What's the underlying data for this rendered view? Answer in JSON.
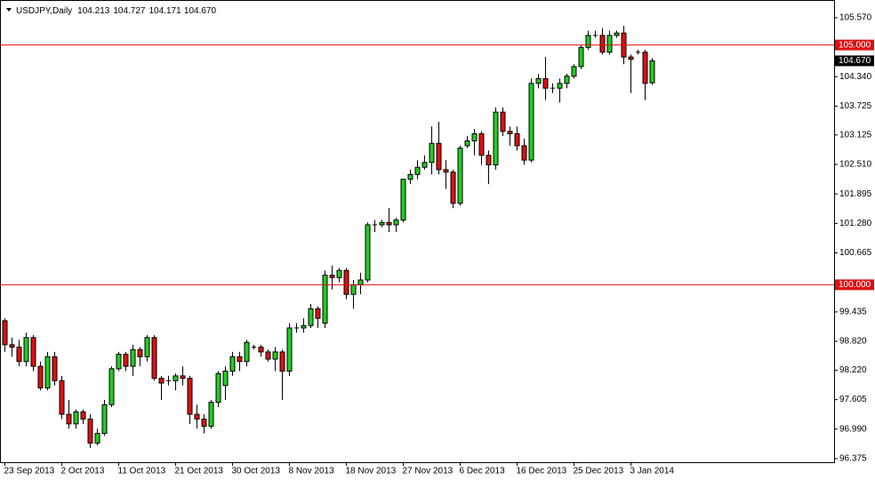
{
  "chart_data": {
    "type": "candlestick",
    "header": {
      "symbol": "USDJPY,Daily",
      "ohlc": [
        "104.213",
        "104.727",
        "104.171",
        "104.670"
      ]
    },
    "x": [
      "23 Sep 2013",
      null,
      null,
      null,
      null,
      null,
      null,
      null,
      "2 Oct 2013",
      null,
      null,
      null,
      null,
      null,
      null,
      null,
      "11 Oct 2013",
      null,
      null,
      null,
      null,
      null,
      null,
      null,
      "21 Oct 2013",
      null,
      null,
      null,
      null,
      null,
      null,
      null,
      "30 Oct 2013",
      null,
      null,
      null,
      null,
      null,
      null,
      null,
      "8 Nov 2013",
      null,
      null,
      null,
      null,
      null,
      null,
      null,
      "18 Nov 2013",
      null,
      null,
      null,
      null,
      null,
      null,
      null,
      "27 Nov 2013",
      null,
      null,
      null,
      null,
      null,
      null,
      null,
      "6 Dec 2013",
      null,
      null,
      null,
      null,
      null,
      null,
      null,
      "16 Dec 2013",
      null,
      null,
      null,
      null,
      null,
      null,
      null,
      "25 Dec 2013",
      null,
      null,
      null,
      null,
      null,
      null,
      null,
      "3 Jan 2014",
      null,
      null,
      null
    ],
    "open": [
      99.25,
      98.75,
      98.7,
      98.4,
      98.9,
      98.3,
      97.85,
      98.5,
      98.0,
      97.3,
      97.1,
      97.35,
      97.2,
      96.7,
      96.9,
      97.5,
      98.25,
      98.55,
      98.3,
      98.65,
      98.5,
      98.9,
      98.05,
      98.0,
      98.0,
      98.1,
      98.05,
      97.3,
      97.2,
      97.05,
      97.55,
      97.9,
      98.2,
      98.5,
      98.4,
      98.7,
      98.7,
      98.6,
      98.45,
      98.6,
      98.2,
      99.1,
      99.1,
      99.15,
      99.5,
      99.2,
      100.2,
      100.15,
      100.3,
      99.8,
      100.0,
      100.1,
      101.25,
      101.25,
      101.3,
      101.25,
      101.35,
      102.2,
      102.3,
      102.45,
      102.55,
      102.95,
      102.4,
      102.35,
      101.7,
      102.9,
      103.0,
      103.15,
      102.7,
      102.5,
      103.6,
      103.2,
      103.15,
      102.9,
      102.6,
      104.2,
      104.3,
      104.1,
      104.1,
      104.2,
      104.35,
      104.55,
      104.95,
      105.2,
      105.2,
      104.85,
      105.2,
      105.25,
      104.75,
      104.85,
      104.85,
      104.213
    ],
    "high": [
      99.3,
      98.9,
      98.85,
      99.0,
      98.95,
      98.4,
      98.6,
      98.6,
      98.1,
      97.6,
      97.4,
      97.4,
      97.3,
      97.0,
      97.6,
      98.3,
      98.6,
      98.6,
      98.75,
      98.7,
      98.95,
      98.95,
      98.1,
      98.1,
      98.15,
      98.3,
      98.1,
      97.5,
      97.3,
      97.6,
      98.2,
      98.3,
      98.6,
      98.6,
      98.85,
      98.75,
      98.75,
      98.65,
      98.7,
      98.65,
      99.2,
      99.2,
      99.3,
      99.6,
      99.55,
      100.3,
      100.4,
      100.35,
      100.35,
      100.1,
      100.25,
      101.3,
      101.35,
      101.35,
      101.6,
      101.4,
      102.2,
      102.4,
      102.6,
      102.7,
      103.3,
      103.4,
      102.6,
      102.4,
      102.9,
      103.1,
      103.25,
      103.2,
      102.8,
      103.7,
      103.7,
      103.3,
      103.3,
      103.05,
      104.3,
      104.4,
      104.75,
      104.2,
      104.3,
      104.4,
      104.6,
      105.0,
      105.3,
      105.3,
      105.35,
      105.3,
      105.3,
      105.4,
      104.8,
      104.9,
      104.9,
      104.727
    ],
    "low": [
      98.6,
      98.5,
      98.3,
      98.3,
      98.2,
      97.8,
      97.8,
      97.9,
      97.2,
      97.0,
      97.0,
      97.1,
      96.6,
      96.65,
      96.85,
      97.45,
      98.2,
      98.2,
      98.1,
      98.3,
      98.4,
      98.0,
      97.6,
      97.9,
      97.8,
      97.9,
      97.1,
      97.0,
      96.9,
      97.0,
      97.45,
      97.6,
      98.1,
      98.2,
      98.3,
      98.65,
      98.5,
      98.4,
      98.2,
      97.6,
      98.1,
      99.0,
      99.0,
      99.1,
      99.1,
      99.1,
      99.9,
      100.05,
      99.7,
      99.5,
      99.8,
      100.05,
      101.1,
      101.2,
      101.1,
      101.1,
      101.3,
      102.1,
      102.2,
      102.4,
      102.3,
      102.3,
      102.0,
      101.6,
      101.65,
      102.85,
      102.7,
      102.5,
      102.1,
      102.4,
      103.1,
      102.9,
      102.8,
      102.5,
      102.55,
      104.1,
      103.85,
      104.0,
      103.8,
      104.1,
      104.3,
      104.5,
      104.9,
      105.15,
      104.8,
      104.8,
      105.15,
      104.6,
      104.0,
      104.8,
      103.85,
      104.171
    ],
    "close": [
      98.75,
      98.7,
      98.4,
      98.9,
      98.3,
      97.85,
      98.5,
      98.0,
      97.3,
      97.1,
      97.35,
      97.2,
      96.7,
      96.9,
      97.5,
      98.25,
      98.55,
      98.3,
      98.65,
      98.5,
      98.9,
      98.05,
      97.95,
      98.0,
      98.1,
      98.05,
      97.3,
      97.2,
      97.05,
      97.55,
      98.15,
      98.2,
      98.5,
      98.4,
      98.8,
      98.7,
      98.6,
      98.45,
      98.6,
      98.2,
      99.1,
      99.1,
      99.15,
      99.5,
      99.3,
      100.2,
      100.15,
      100.3,
      99.8,
      100.0,
      100.1,
      101.25,
      101.25,
      101.3,
      101.25,
      101.35,
      102.2,
      102.3,
      102.45,
      102.55,
      102.95,
      102.4,
      102.35,
      101.7,
      102.85,
      103.0,
      103.15,
      102.7,
      102.5,
      103.6,
      103.2,
      103.15,
      102.9,
      102.6,
      104.2,
      104.3,
      104.1,
      104.1,
      104.2,
      104.35,
      104.55,
      104.95,
      105.2,
      105.2,
      104.85,
      105.2,
      105.25,
      104.75,
      104.7,
      104.85,
      104.2,
      104.67
    ],
    "up_color": "#22cc22",
    "down_color": "#dd1111",
    "ylim": [
      96.3,
      105.92
    ],
    "yticks": [
      {
        "value": 105.57,
        "label": "105.570"
      },
      {
        "value": 104.34,
        "label": "104.340"
      },
      {
        "value": 103.725,
        "label": "103.725"
      },
      {
        "value": 103.125,
        "label": "103.125"
      },
      {
        "value": 102.51,
        "label": "102.510"
      },
      {
        "value": 101.895,
        "label": "101.895"
      },
      {
        "value": 101.28,
        "label": "101.280"
      },
      {
        "value": 100.665,
        "label": "100.665"
      },
      {
        "value": 99.435,
        "label": "99.435"
      },
      {
        "value": 98.82,
        "label": "98.820"
      },
      {
        "value": 98.22,
        "label": "98.220"
      },
      {
        "value": 97.605,
        "label": "97.605"
      },
      {
        "value": 96.99,
        "label": "96.990"
      },
      {
        "value": 96.375,
        "label": "96.375"
      }
    ],
    "hlines": [
      {
        "value": 105,
        "label": "105.000",
        "color": "#dd1111"
      },
      {
        "value": 100,
        "label": "100.000",
        "color": "#dd1111"
      }
    ],
    "current_price": {
      "value": 104.67,
      "label": "104.670",
      "color": "#000000"
    }
  }
}
